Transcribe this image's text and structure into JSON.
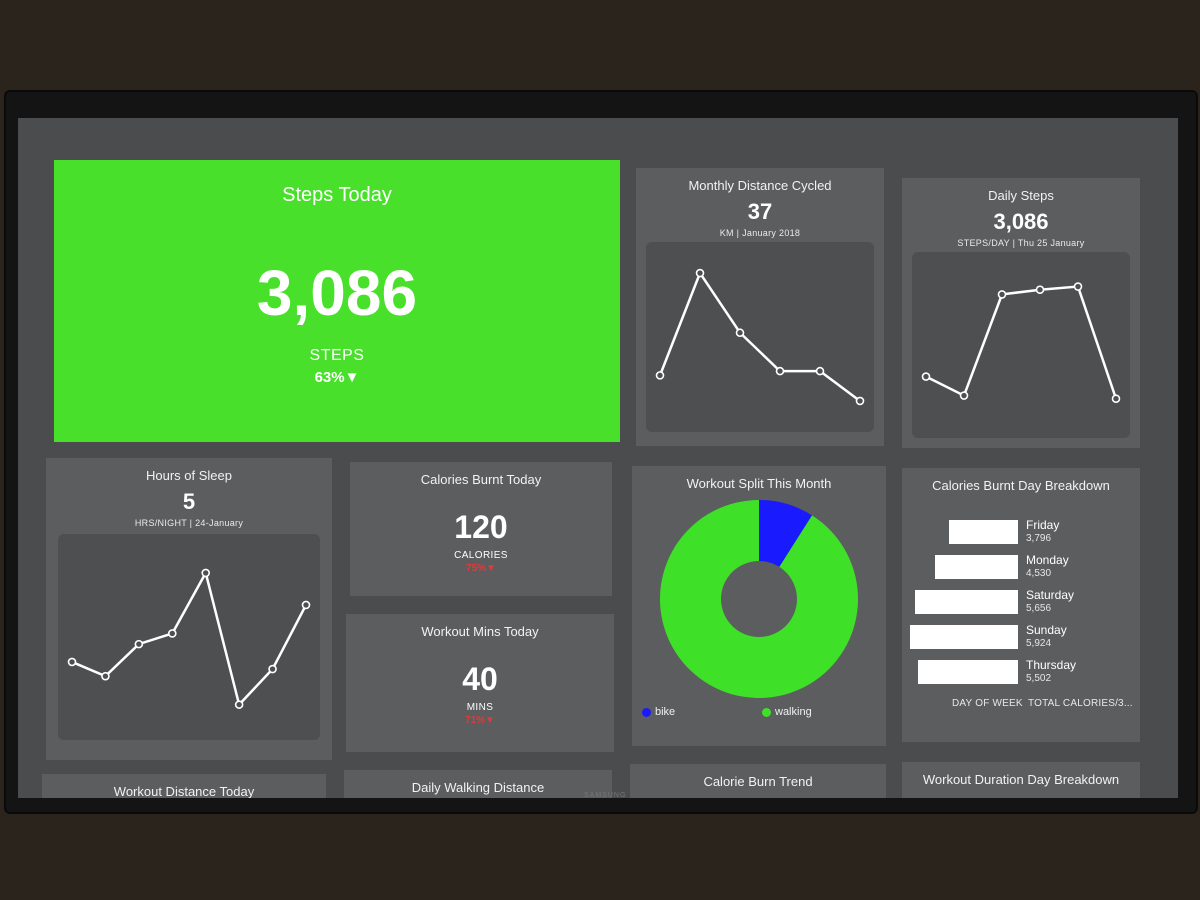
{
  "steps_today": {
    "title": "Steps Today",
    "value": "3,086",
    "unit": "STEPS",
    "change": "63%▼"
  },
  "monthly_distance": {
    "title": "Monthly Distance Cycled",
    "value": "37",
    "subtitle": "KM  | January 2018",
    "chart_data": {
      "type": "line",
      "values": [
        10,
        34,
        20,
        11,
        11,
        4
      ],
      "ylim": [
        0,
        38
      ]
    }
  },
  "daily_steps": {
    "title": "Daily Steps",
    "value": "3,086",
    "subtitle": "STEPS/DAY  | Thu 25 January",
    "chart_data": {
      "type": "line",
      "values": [
        3000,
        1800,
        8200,
        8500,
        8700,
        1600
      ],
      "ylim": [
        0,
        10000
      ]
    }
  },
  "hours_sleep": {
    "title": "Hours of Sleep",
    "value": "5",
    "subtitle": "HRS/NIGHT  | 24-January",
    "chart_data": {
      "type": "line",
      "values": [
        5.8,
        5.4,
        6.3,
        6.6,
        8.3,
        4.6,
        5.6,
        7.4
      ],
      "ylim": [
        4,
        9
      ]
    }
  },
  "calories_today": {
    "title": "Calories Burnt Today",
    "value": "120",
    "unit": "CALORIES",
    "change": "75%▼"
  },
  "workout_mins": {
    "title": "Workout Mins Today",
    "value": "40",
    "unit": "MINS",
    "change": "71%▼"
  },
  "workout_split": {
    "title": "Workout Split This Month",
    "chart_data": {
      "type": "pie",
      "slices": [
        {
          "name": "bike",
          "value": 9,
          "color": "#1a1aff"
        },
        {
          "name": "walking",
          "value": 91,
          "color": "#3fe028"
        }
      ]
    }
  },
  "calories_breakdown": {
    "title": "Calories Burnt Day Breakdown",
    "footer_category": "DAY OF WEEK",
    "footer_value": "TOTAL CALORIES/3...",
    "chart_data": {
      "type": "bar",
      "categories": [
        "Friday",
        "Monday",
        "Saturday",
        "Sunday",
        "Thursday"
      ],
      "values": [
        3796,
        4530,
        5656,
        5924,
        5502
      ],
      "labels": [
        "3,796",
        "4,530",
        "5,656",
        "5,924",
        "5,502"
      ]
    }
  },
  "bottom_row": {
    "t1": "Workout Distance Today",
    "t2": "Daily Walking Distance",
    "t3": "Calorie Burn Trend",
    "t4": "Workout Duration Day Breakdown"
  },
  "brand": "SAMSUNG"
}
